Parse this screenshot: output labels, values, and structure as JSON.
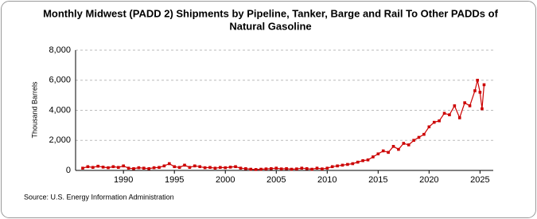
{
  "chart_data": {
    "type": "line",
    "title": [
      "Monthly Midwest (PADD 2)  Shipments by Pipeline, Tanker, Barge and Rail To Other PADDs of",
      "Natural Gasoline"
    ],
    "y_label": "Thousand Barrels",
    "source": "Source: U.S. Energy Information Administration",
    "x": [
      1986,
      1986.5,
      1987,
      1987.5,
      1988,
      1988.5,
      1989,
      1989.5,
      1990,
      1990.5,
      1991,
      1991.5,
      1992,
      1992.5,
      1993,
      1993.5,
      1994,
      1994.5,
      1995,
      1995.5,
      1996,
      1996.5,
      1997,
      1997.5,
      1998,
      1998.5,
      1999,
      1999.5,
      2000,
      2000.5,
      2001,
      2001.5,
      2002,
      2002.5,
      2003,
      2003.5,
      2004,
      2004.5,
      2005,
      2005.5,
      2006,
      2006.5,
      2007,
      2007.5,
      2008,
      2008.5,
      2009,
      2009.5,
      2010,
      2010.5,
      2011,
      2011.5,
      2012,
      2012.5,
      2013,
      2013.5,
      2014,
      2014.5,
      2015,
      2015.5,
      2016,
      2016.5,
      2017,
      2017.5,
      2018,
      2018.5,
      2019,
      2019.5,
      2020,
      2020.5,
      2021,
      2021.5,
      2022,
      2022.5,
      2023,
      2023.5,
      2024,
      2024.5,
      2024.75,
      2025,
      2025.2,
      2025.4
    ],
    "series": [
      {
        "name": "Shipments",
        "color": "#cc0000",
        "values": [
          150,
          250,
          200,
          280,
          220,
          180,
          250,
          200,
          300,
          150,
          120,
          180,
          150,
          120,
          180,
          200,
          300,
          450,
          250,
          200,
          350,
          200,
          300,
          250,
          180,
          200,
          150,
          200,
          180,
          220,
          250,
          150,
          120,
          80,
          60,
          80,
          100,
          120,
          150,
          100,
          120,
          80,
          100,
          150,
          120,
          80,
          150,
          100,
          150,
          250,
          300,
          350,
          400,
          450,
          550,
          650,
          700,
          900,
          1100,
          1300,
          1200,
          1600,
          1400,
          1800,
          1700,
          2000,
          2200,
          2400,
          2900,
          3200,
          3300,
          3800,
          3700,
          4300,
          3500,
          4500,
          4300,
          5300,
          6000,
          5200,
          4100,
          5700
        ]
      }
    ],
    "xlim": [
      1985.3,
      2026.3
    ],
    "xticks": [
      1990,
      1995,
      2000,
      2005,
      2010,
      2015,
      2020,
      2025
    ],
    "ylim": [
      0,
      8000
    ],
    "yticks": [
      0,
      {
        "value": 2000,
        "label": "2,000"
      },
      {
        "value": 4000,
        "label": "4,000"
      },
      {
        "value": 6000,
        "label": "6,000"
      },
      {
        "value": 8000,
        "label": "8,000"
      }
    ],
    "grid": true
  }
}
